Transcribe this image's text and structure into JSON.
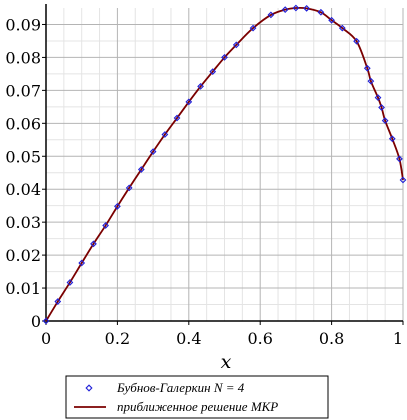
{
  "chart_data": {
    "type": "line",
    "xlabel": "x",
    "xlim": [
      0,
      1
    ],
    "ylim": [
      0,
      0.095
    ],
    "xticks": [
      0,
      0.2,
      0.4,
      0.6,
      0.8,
      1
    ],
    "xtick_labels": [
      "0",
      "0.2",
      "0.4",
      "0.6",
      "0.8",
      "1"
    ],
    "yticks": [
      0,
      0.01,
      0.02,
      0.03,
      0.04,
      0.05,
      0.06,
      0.07,
      0.08,
      0.09
    ],
    "ytick_labels": [
      "0",
      "0.01",
      "0.02",
      "0.03",
      "0.04",
      "0.05",
      "0.06",
      "0.07",
      "0.08",
      "0.09"
    ],
    "grid": true,
    "legend_position": "bottom",
    "series": [
      {
        "name": "Бубнов-Галеркин N = 4",
        "style": "markers",
        "marker": "diamond",
        "color": "#1f1fd8",
        "x": [
          0,
          0.033,
          0.067,
          0.1,
          0.133,
          0.167,
          0.2,
          0.233,
          0.267,
          0.3,
          0.333,
          0.367,
          0.4,
          0.433,
          0.467,
          0.5,
          0.533,
          0.58,
          0.63,
          0.67,
          0.7,
          0.73,
          0.77,
          0.8,
          0.83,
          0.87,
          0.9,
          0.91,
          0.93,
          0.94,
          0.95,
          0.97,
          0.99,
          1.0
        ],
        "y": [
          0,
          0.0059,
          0.0117,
          0.0176,
          0.0234,
          0.029,
          0.0348,
          0.0404,
          0.046,
          0.0514,
          0.0566,
          0.0616,
          0.0665,
          0.0712,
          0.0757,
          0.08,
          0.0838,
          0.0889,
          0.0929,
          0.0945,
          0.095,
          0.0949,
          0.0937,
          0.0913,
          0.0889,
          0.0849,
          0.0767,
          0.0728,
          0.0678,
          0.0648,
          0.0608,
          0.0553,
          0.0492,
          0.0428
        ]
      },
      {
        "name": "приближенное решение МКР",
        "style": "line",
        "color": "#7b0000",
        "x": [
          0,
          0.033,
          0.067,
          0.1,
          0.133,
          0.167,
          0.2,
          0.233,
          0.267,
          0.3,
          0.333,
          0.367,
          0.4,
          0.433,
          0.467,
          0.5,
          0.533,
          0.58,
          0.63,
          0.67,
          0.7,
          0.73,
          0.77,
          0.8,
          0.83,
          0.87,
          0.9,
          0.91,
          0.93,
          0.94,
          0.95,
          0.97,
          0.99,
          1.0
        ],
        "y": [
          0,
          0.0059,
          0.0117,
          0.0176,
          0.0234,
          0.029,
          0.0348,
          0.0404,
          0.046,
          0.0514,
          0.0566,
          0.0616,
          0.0665,
          0.0712,
          0.0757,
          0.08,
          0.0838,
          0.0889,
          0.0929,
          0.0945,
          0.095,
          0.0949,
          0.0937,
          0.0913,
          0.0889,
          0.0849,
          0.0767,
          0.0728,
          0.0678,
          0.0648,
          0.0608,
          0.0553,
          0.0492,
          0.0428
        ]
      }
    ]
  }
}
